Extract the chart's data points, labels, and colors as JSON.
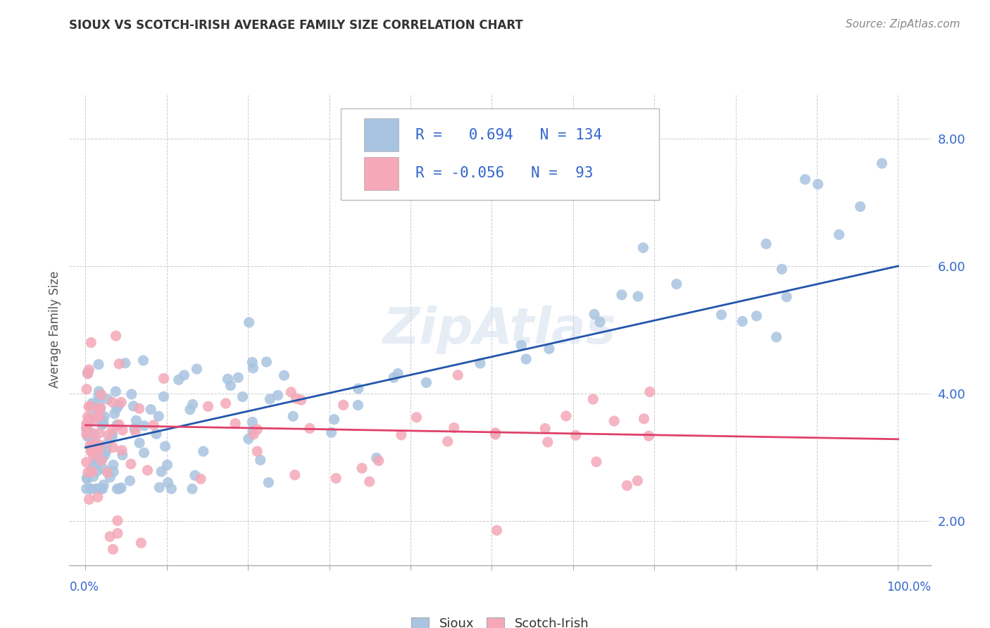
{
  "title": "SIOUX VS SCOTCH-IRISH AVERAGE FAMILY SIZE CORRELATION CHART",
  "source": "Source: ZipAtlas.com",
  "ylabel": "Average Family Size",
  "ytick_values": [
    2.0,
    4.0,
    6.0,
    8.0
  ],
  "ylim": [
    1.3,
    8.7
  ],
  "xlim": [
    -0.02,
    1.04
  ],
  "sioux_color": "#a8c4e0",
  "scotch_color": "#f4a8b8",
  "sioux_line_color": "#2255aa",
  "scotch_line_color": "#e0406a",
  "sioux_R": 0.694,
  "sioux_N": 134,
  "scotch_R": -0.056,
  "scotch_N": 93,
  "watermark": "ZipAtlas",
  "legend_text_color": "#3366cc",
  "tick_color": "#3366cc",
  "background_color": "#ffffff",
  "grid_color": "#cccccc",
  "title_color": "#333333",
  "source_color": "#888888",
  "ylabel_color": "#555555",
  "sioux_line_y0": 3.15,
  "sioux_line_y1": 6.0,
  "scotch_line_y0": 3.5,
  "scotch_line_y1": 3.28
}
